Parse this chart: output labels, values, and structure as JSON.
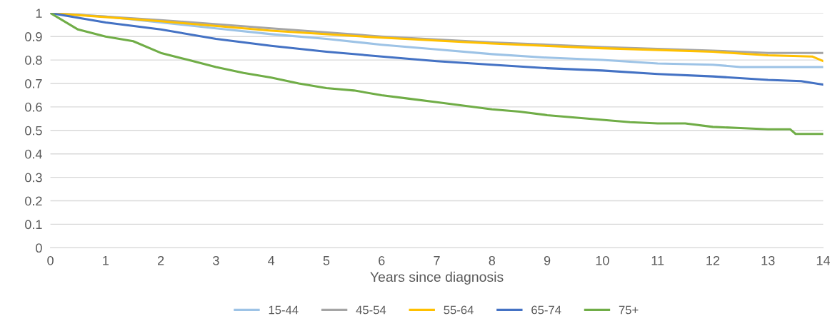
{
  "chart_data": {
    "type": "line",
    "xlabel": "Years since diagnosis",
    "xlim": [
      0,
      14
    ],
    "xticks": [
      0,
      1,
      2,
      3,
      4,
      5,
      6,
      7,
      8,
      9,
      10,
      11,
      12,
      13,
      14
    ],
    "ylim": [
      0,
      1
    ],
    "yticks": [
      0,
      0.1,
      0.2,
      0.3,
      0.4,
      0.5,
      0.6,
      0.7,
      0.8,
      0.9,
      1
    ],
    "grid": "y",
    "legend": "bottom",
    "marker": "none",
    "line_style": "solid",
    "series": [
      {
        "name": "15-44",
        "color": "#9dc3e6",
        "x": [
          0,
          1,
          2,
          3,
          4,
          5,
          6,
          7,
          8,
          9,
          10,
          11,
          12,
          12.5,
          14
        ],
        "values": [
          1,
          0.985,
          0.96,
          0.935,
          0.91,
          0.89,
          0.865,
          0.845,
          0.825,
          0.81,
          0.8,
          0.785,
          0.78,
          0.77,
          0.77
        ]
      },
      {
        "name": "45-54",
        "color": "#a5a5a5",
        "x": [
          0,
          2,
          4,
          6,
          8,
          10,
          12,
          13,
          14
        ],
        "values": [
          1,
          0.97,
          0.935,
          0.9,
          0.875,
          0.855,
          0.84,
          0.83,
          0.83
        ]
      },
      {
        "name": "55-64",
        "color": "#ffc000",
        "x": [
          0,
          2,
          4,
          6,
          8,
          10,
          12,
          13,
          13.8,
          14
        ],
        "values": [
          1,
          0.965,
          0.925,
          0.895,
          0.87,
          0.85,
          0.835,
          0.82,
          0.815,
          0.795
        ]
      },
      {
        "name": "65-74",
        "color": "#4472c4",
        "x": [
          0,
          1,
          2,
          3,
          4,
          5,
          6,
          7,
          8,
          9,
          10,
          11,
          12,
          13,
          13.6,
          14
        ],
        "values": [
          1,
          0.96,
          0.93,
          0.89,
          0.86,
          0.835,
          0.815,
          0.795,
          0.78,
          0.765,
          0.755,
          0.74,
          0.73,
          0.715,
          0.71,
          0.695
        ]
      },
      {
        "name": "75+",
        "color": "#70ad47",
        "x": [
          0,
          0.5,
          1,
          1.5,
          2,
          2.5,
          3,
          3.5,
          4,
          4.5,
          5,
          5.5,
          6,
          6.5,
          7,
          7.5,
          8,
          8.5,
          9,
          9.5,
          10,
          10.5,
          11,
          11.5,
          12,
          12.5,
          13,
          13.4,
          13.5,
          14
        ],
        "values": [
          1,
          0.93,
          0.9,
          0.88,
          0.83,
          0.8,
          0.77,
          0.745,
          0.725,
          0.7,
          0.68,
          0.67,
          0.65,
          0.635,
          0.62,
          0.605,
          0.59,
          0.58,
          0.565,
          0.555,
          0.545,
          0.535,
          0.53,
          0.53,
          0.515,
          0.51,
          0.505,
          0.505,
          0.485,
          0.485
        ]
      }
    ]
  }
}
